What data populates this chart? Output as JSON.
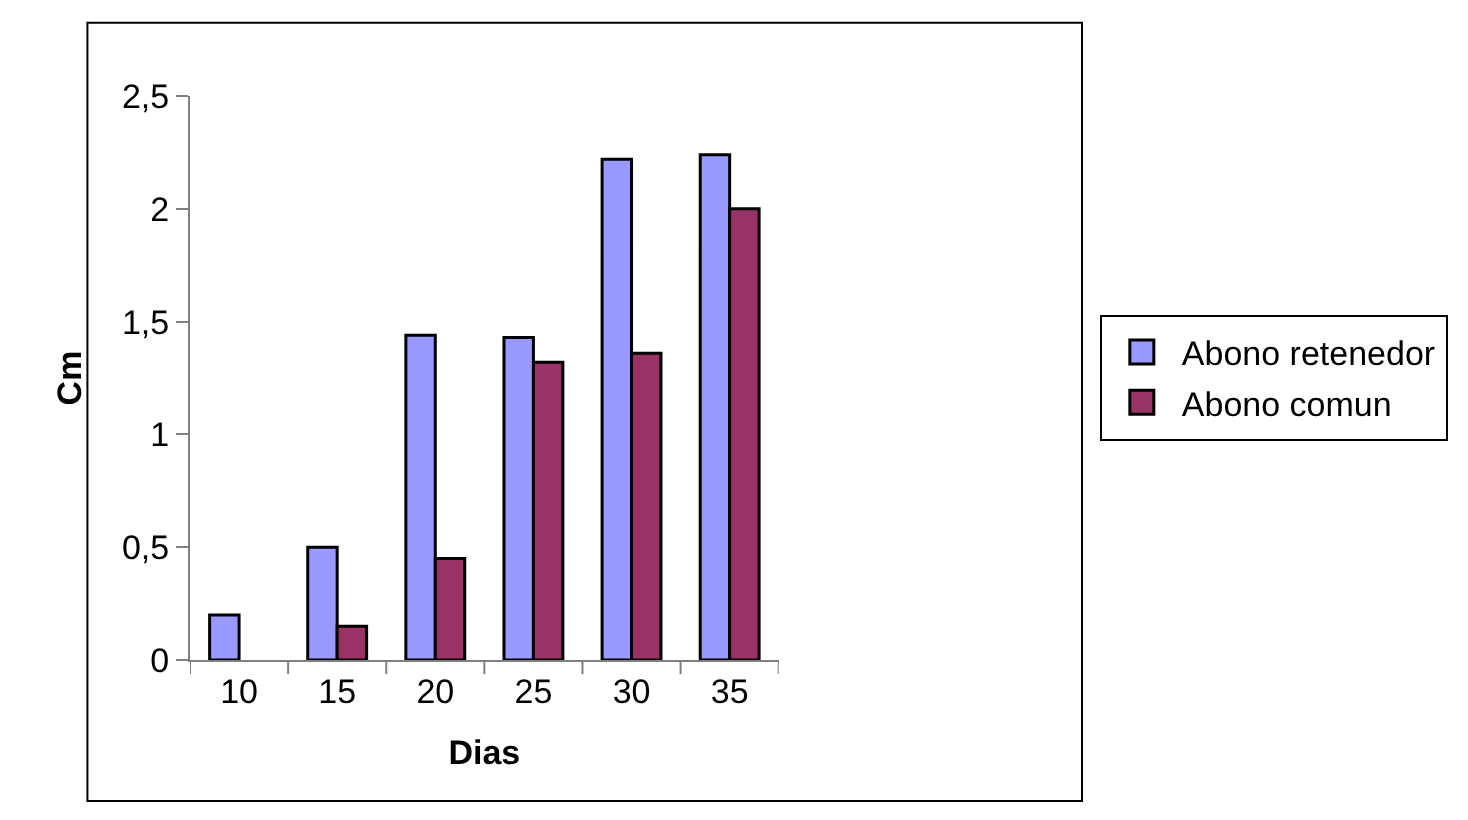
{
  "chart_data": {
    "type": "bar",
    "xlabel": "Dias",
    "ylabel": "Cm",
    "categories": [
      "10",
      "15",
      "20",
      "25",
      "30",
      "35"
    ],
    "series": [
      {
        "name": "Abono retenedor",
        "color": "#9999ff",
        "values": [
          0.2,
          0.5,
          1.44,
          1.43,
          2.22,
          2.24
        ]
      },
      {
        "name": "Abono comun",
        "color": "#993366",
        "values": [
          null,
          0.15,
          0.45,
          1.32,
          1.36,
          2.0
        ]
      }
    ],
    "ylim": [
      0,
      2.5
    ],
    "yticks": [
      0,
      {
        "value": 0.5,
        "label": "0,5"
      },
      1,
      {
        "value": 1.5,
        "label": "1,5"
      },
      2,
      {
        "value": 2.5,
        "label": "2,5"
      }
    ],
    "grid": false,
    "legend": "right"
  }
}
